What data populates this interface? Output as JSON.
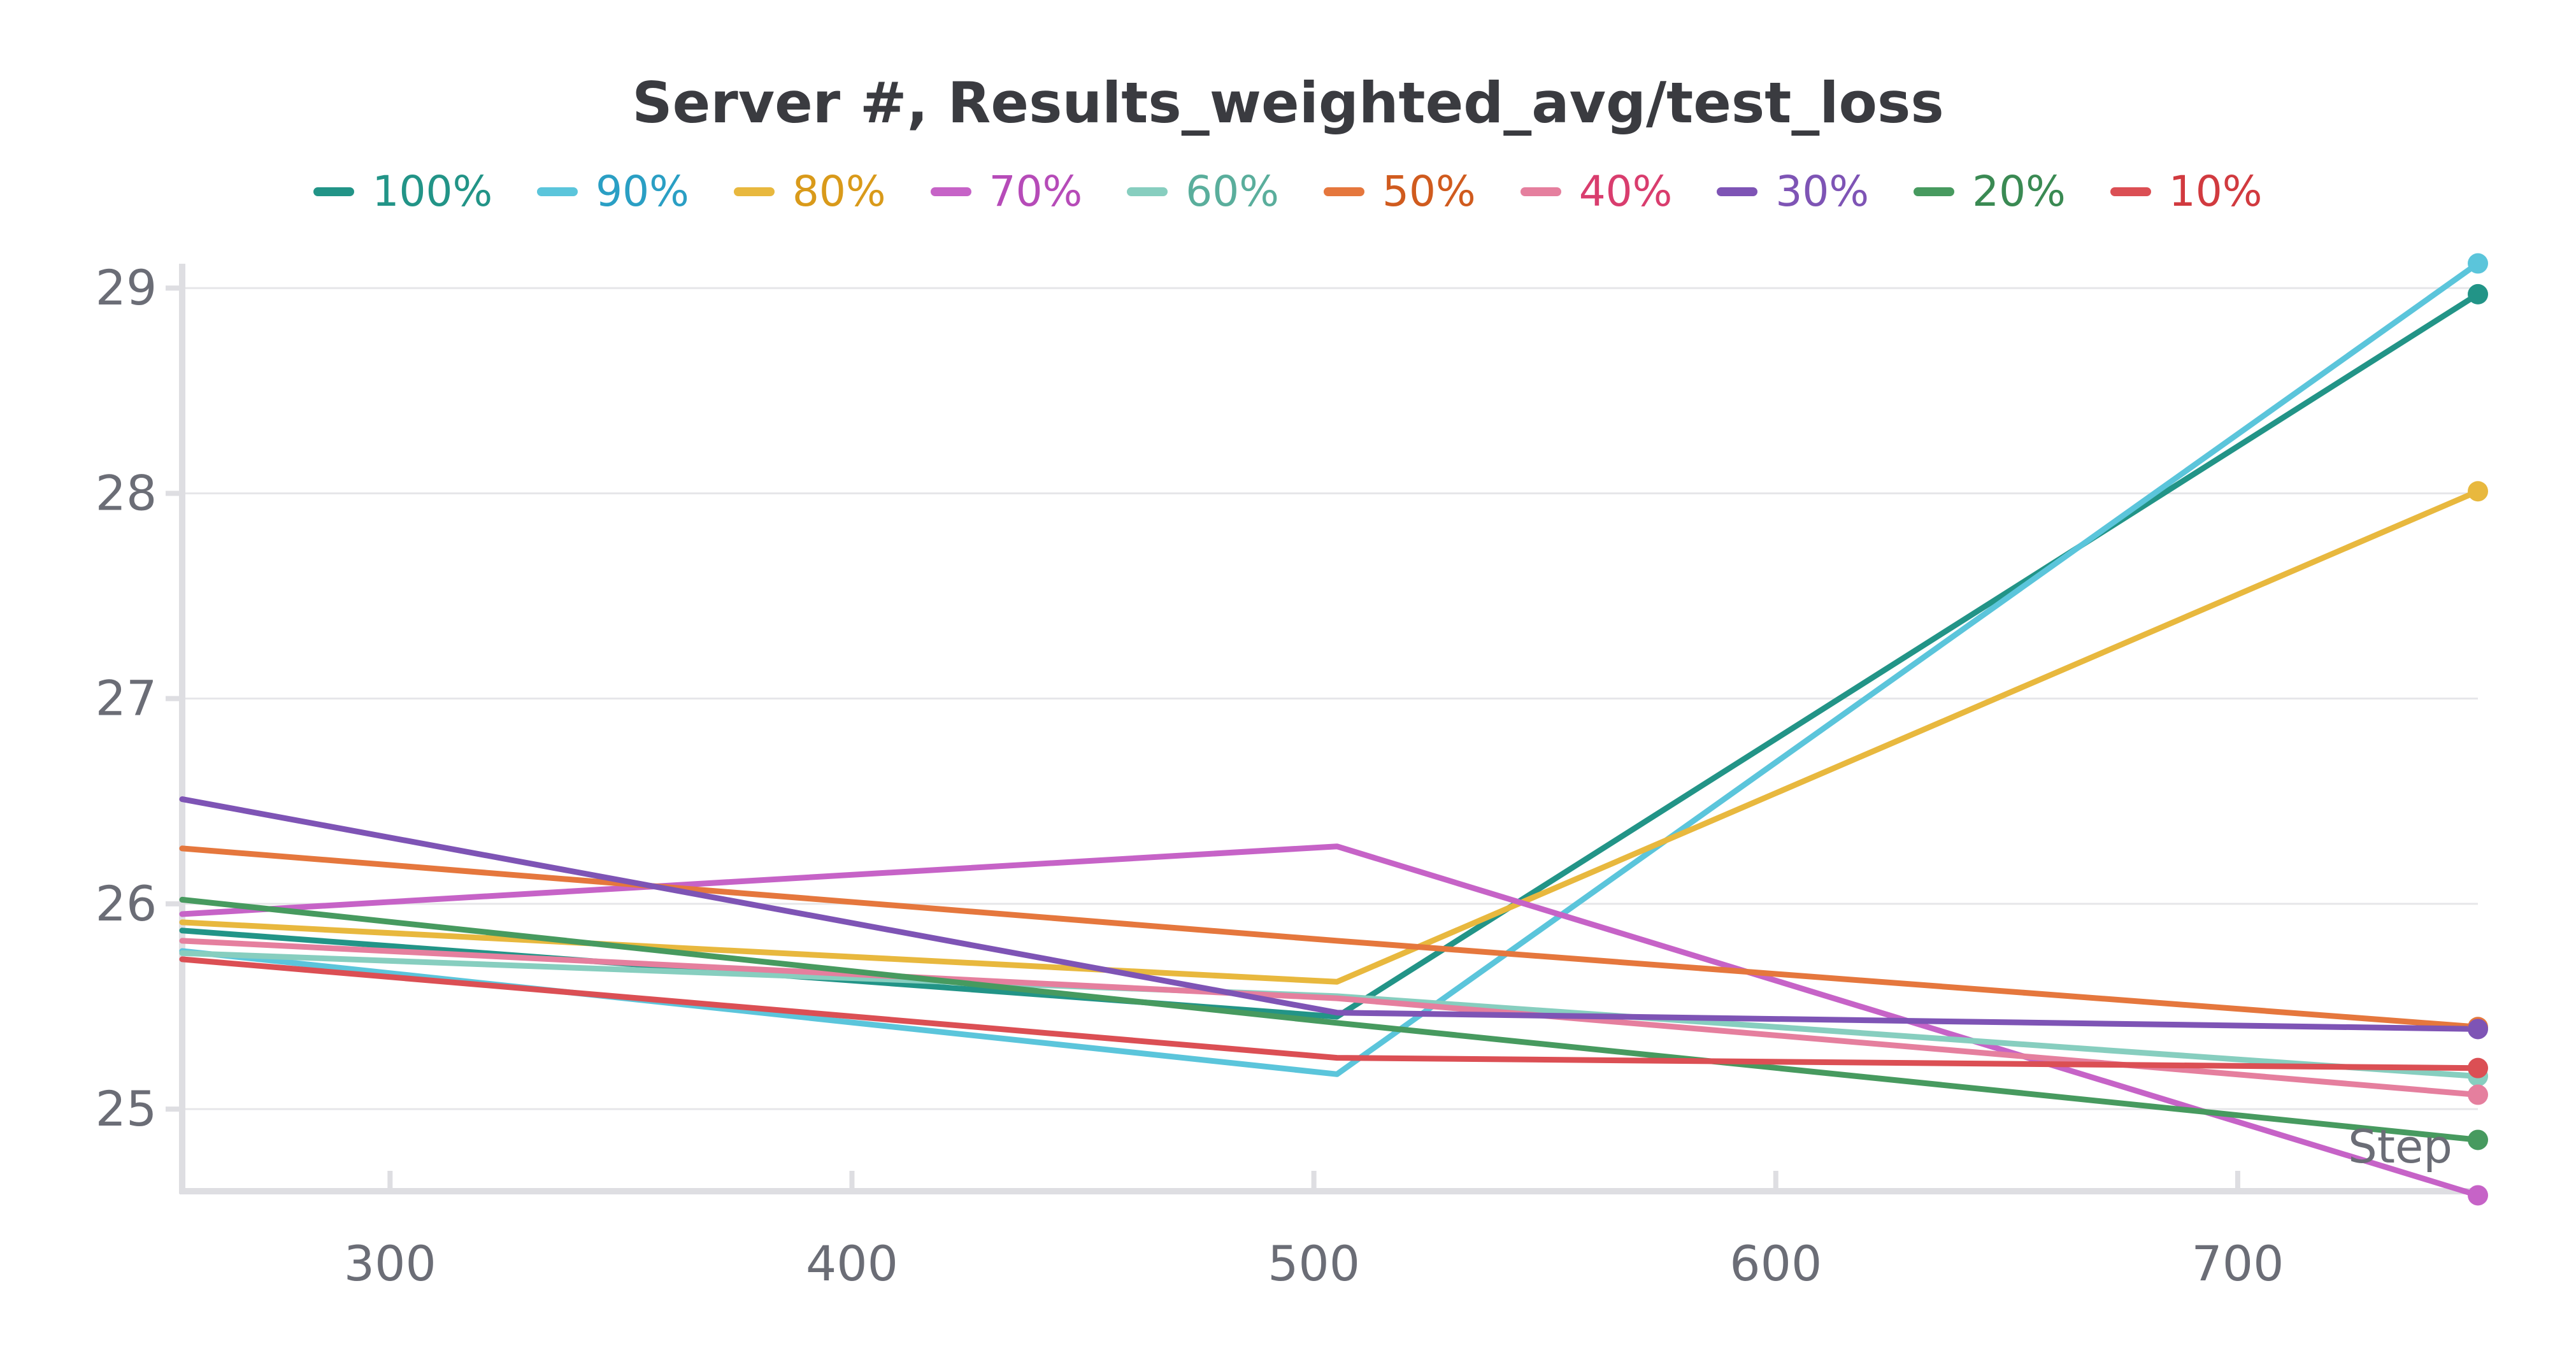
{
  "chart_data": {
    "type": "line",
    "title": "Server #, Results_weighted_avg/test_loss",
    "xlabel": "Step",
    "ylabel": "",
    "xlim": [
      255,
      752
    ],
    "ylim": [
      24.6,
      29.1
    ],
    "x_ticks": [
      300,
      400,
      500,
      600,
      700
    ],
    "y_ticks": [
      25,
      26,
      27,
      28,
      29
    ],
    "grid": "horizontal",
    "legend_position": "top",
    "series": [
      {
        "name": "100%",
        "color": "#229487",
        "text_color": "#229487",
        "points": [
          [
            255,
            25.87
          ],
          [
            505,
            25.45
          ],
          [
            752,
            28.97
          ]
        ]
      },
      {
        "name": "90%",
        "color": "#5bc5db",
        "text_color": "#2a9fc4",
        "points": [
          [
            255,
            25.77
          ],
          [
            505,
            25.17
          ],
          [
            752,
            29.12
          ]
        ]
      },
      {
        "name": "80%",
        "color": "#e8b83e",
        "text_color": "#d99a1a",
        "points": [
          [
            255,
            25.91
          ],
          [
            505,
            25.62
          ],
          [
            752,
            28.01
          ]
        ]
      },
      {
        "name": "70%",
        "color": "#c663c7",
        "text_color": "#b64bb8",
        "points": [
          [
            255,
            25.95
          ],
          [
            505,
            26.28
          ],
          [
            752,
            24.58
          ]
        ]
      },
      {
        "name": "60%",
        "color": "#87cebf",
        "text_color": "#5aae9c",
        "points": [
          [
            255,
            25.76
          ],
          [
            505,
            25.55
          ],
          [
            752,
            25.16
          ]
        ]
      },
      {
        "name": "50%",
        "color": "#e5773d",
        "text_color": "#d05b1e",
        "points": [
          [
            255,
            26.27
          ],
          [
            505,
            25.82
          ],
          [
            752,
            25.4
          ]
        ]
      },
      {
        "name": "40%",
        "color": "#e57f9e",
        "text_color": "#d93d6e",
        "points": [
          [
            255,
            25.82
          ],
          [
            505,
            25.54
          ],
          [
            752,
            25.07
          ]
        ]
      },
      {
        "name": "30%",
        "color": "#7e54b5",
        "text_color": "#7e54b5",
        "points": [
          [
            255,
            26.51
          ],
          [
            505,
            25.47
          ],
          [
            752,
            25.39
          ]
        ]
      },
      {
        "name": "20%",
        "color": "#479a5f",
        "text_color": "#3a8a53",
        "points": [
          [
            255,
            26.02
          ],
          [
            505,
            25.42
          ],
          [
            752,
            24.85
          ]
        ]
      },
      {
        "name": "10%",
        "color": "#db4f54",
        "text_color": "#d13a3f",
        "points": [
          [
            255,
            25.73
          ],
          [
            505,
            25.25
          ],
          [
            752,
            25.2
          ]
        ]
      }
    ]
  }
}
